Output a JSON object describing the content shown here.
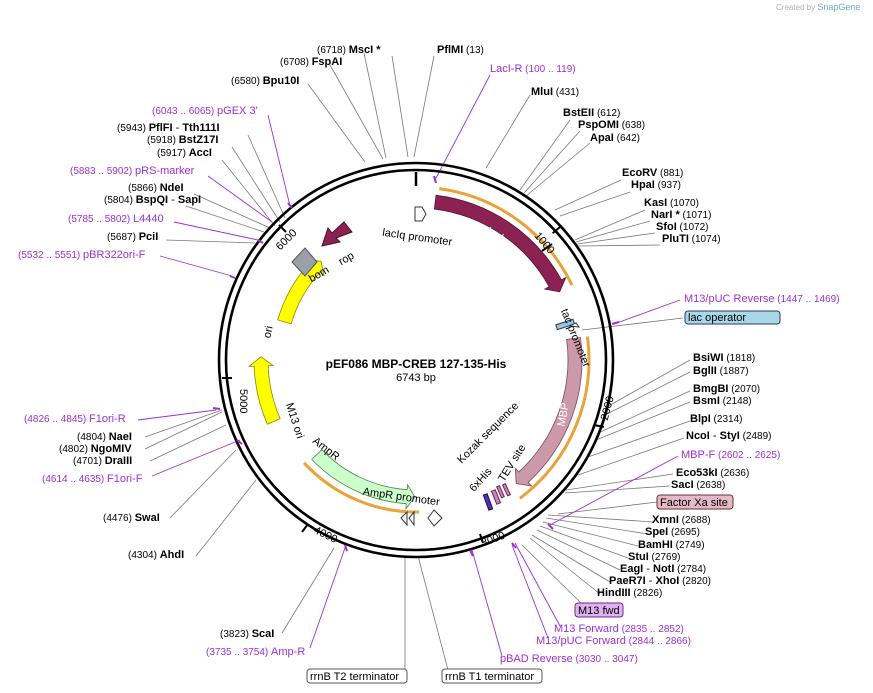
{
  "watermark": {
    "prefix": "Created by",
    "brand": "SnapGene"
  },
  "plasmid": {
    "name": "pEF086 MBP-CREB 127-135-His",
    "size_label": "6743 bp",
    "length": 6743
  },
  "ticks": [
    "1000",
    "2000",
    "3000",
    "4000",
    "5000",
    "6000"
  ],
  "features": {
    "lacI": {
      "label": "lacI",
      "start": 130,
      "end": 1210,
      "color": "#8b2252"
    },
    "lacIq": {
      "label": "lacIq promoter"
    },
    "tac": {
      "label": "tac promoter"
    },
    "lac_operator": {
      "label": "lac operator"
    },
    "MBP": {
      "label": "MBP",
      "start": 1540,
      "end": 2640,
      "color": "#cc99aa"
    },
    "factorXa": {
      "label": "Factor Xa site"
    },
    "kozak": {
      "label": "Kozak sequence"
    },
    "his": {
      "label": "6xHis"
    },
    "tev": {
      "label": "TEV site"
    },
    "m13fwd": {
      "label": "M13 fwd"
    },
    "rrnB_T1": {
      "label": "rrnB T1 terminator"
    },
    "rrnB_T2": {
      "label": "rrnB T2 terminator"
    },
    "AmpR_promoter": {
      "label": "AmpR promoter"
    },
    "AmpR": {
      "label": "AmpR",
      "start": 3380,
      "end": 4240,
      "color": "#ccffcc"
    },
    "M13ori": {
      "label": "M13 ori",
      "start": 4620,
      "end": 5080,
      "color": "#ffff00"
    },
    "ori": {
      "label": "ori",
      "start": 5360,
      "end": 5920,
      "color": "#ffff00"
    },
    "bom": {
      "label": "bom"
    },
    "rop": {
      "label": "rop"
    }
  },
  "sites": [
    {
      "pos": "(6718)",
      "name": "MscI *"
    },
    {
      "pos": "(13)",
      "name": "PflMI"
    },
    {
      "pos": "(6708)",
      "name": "FspAI"
    },
    {
      "pos": "(6580)",
      "name": "Bpu10I"
    },
    {
      "pos": "(431)",
      "name": "MluI"
    },
    {
      "pos": "(612)",
      "name": "BstEII"
    },
    {
      "pos": "(638)",
      "name": "PspOMI"
    },
    {
      "pos": "(642)",
      "name": "ApaI"
    },
    {
      "pos": "(881)",
      "name": "EcoRV"
    },
    {
      "pos": "(937)",
      "name": "HpaI"
    },
    {
      "pos": "(1070)",
      "name": "KasI"
    },
    {
      "pos": "(1071)",
      "name": "NarI *"
    },
    {
      "pos": "(1072)",
      "name": "SfoI"
    },
    {
      "pos": "(1074)",
      "name": "PluTI"
    },
    {
      "pos": "(5943)",
      "name": "PflFI",
      "name2": "Tth111I"
    },
    {
      "pos": "(5918)",
      "name": "BstZ17I"
    },
    {
      "pos": "(5917)",
      "name": "AccI"
    },
    {
      "pos": "(5866)",
      "name": "NdeI"
    },
    {
      "pos": "(5804)",
      "name": "BspQI",
      "name2": "SapI"
    },
    {
      "pos": "(5687)",
      "name": "PciI"
    },
    {
      "pos": "(1818)",
      "name": "BsiWI"
    },
    {
      "pos": "(1887)",
      "name": "BglII"
    },
    {
      "pos": "(2070)",
      "name": "BmgBI"
    },
    {
      "pos": "(2148)",
      "name": "BsmI"
    },
    {
      "pos": "(2314)",
      "name": "BlpI"
    },
    {
      "pos": "(2489)",
      "name": "NcoI",
      "name2": "StyI"
    },
    {
      "pos": "(2636)",
      "name": "Eco53kI"
    },
    {
      "pos": "(2638)",
      "name": "SacI"
    },
    {
      "pos": "(2688)",
      "name": "XmnI"
    },
    {
      "pos": "(2695)",
      "name": "SpeI"
    },
    {
      "pos": "(2749)",
      "name": "BamHI"
    },
    {
      "pos": "(2769)",
      "name": "StuI"
    },
    {
      "pos": "(2784)",
      "name": "EagI",
      "name2": "NotI"
    },
    {
      "pos": "(2820)",
      "name": "PaeR7I",
      "name2": "XhoI"
    },
    {
      "pos": "(2826)",
      "name": "HindIII"
    },
    {
      "pos": "(4804)",
      "name": "NaeI"
    },
    {
      "pos": "(4802)",
      "name": "NgoMIV"
    },
    {
      "pos": "(4701)",
      "name": "DraIII"
    },
    {
      "pos": "(4476)",
      "name": "SwaI"
    },
    {
      "pos": "(4304)",
      "name": "AhdI"
    },
    {
      "pos": "(3823)",
      "name": "ScaI"
    }
  ],
  "primers": [
    {
      "name": "LacI-R",
      "range": "(100 .. 119)"
    },
    {
      "name": "pGEX 3'",
      "range": "(6043 .. 6065)"
    },
    {
      "name": "pRS-marker",
      "range": "(5883 .. 5902)"
    },
    {
      "name": "L4440",
      "range": "(5785 .. 5802)"
    },
    {
      "name": "pBR322ori-F",
      "range": "(5532 .. 5551)"
    },
    {
      "name": "M13/pUC Reverse",
      "range": "(1447 .. 1469)"
    },
    {
      "name": "MBP-F",
      "range": "(2602 .. 2625)"
    },
    {
      "name": "F1ori-R",
      "range": "(4826 .. 4845)"
    },
    {
      "name": "F1ori-F",
      "range": "(4614 .. 4635)"
    },
    {
      "name": "M13 Forward",
      "range": "(2835 .. 2852)"
    },
    {
      "name": "M13/pUC Forward",
      "range": "(2844 .. 2866)"
    },
    {
      "name": "pBAD Reverse",
      "range": "(3030 .. 3047)"
    },
    {
      "name": "Amp-R",
      "range": "(3735 .. 3754)"
    }
  ]
}
